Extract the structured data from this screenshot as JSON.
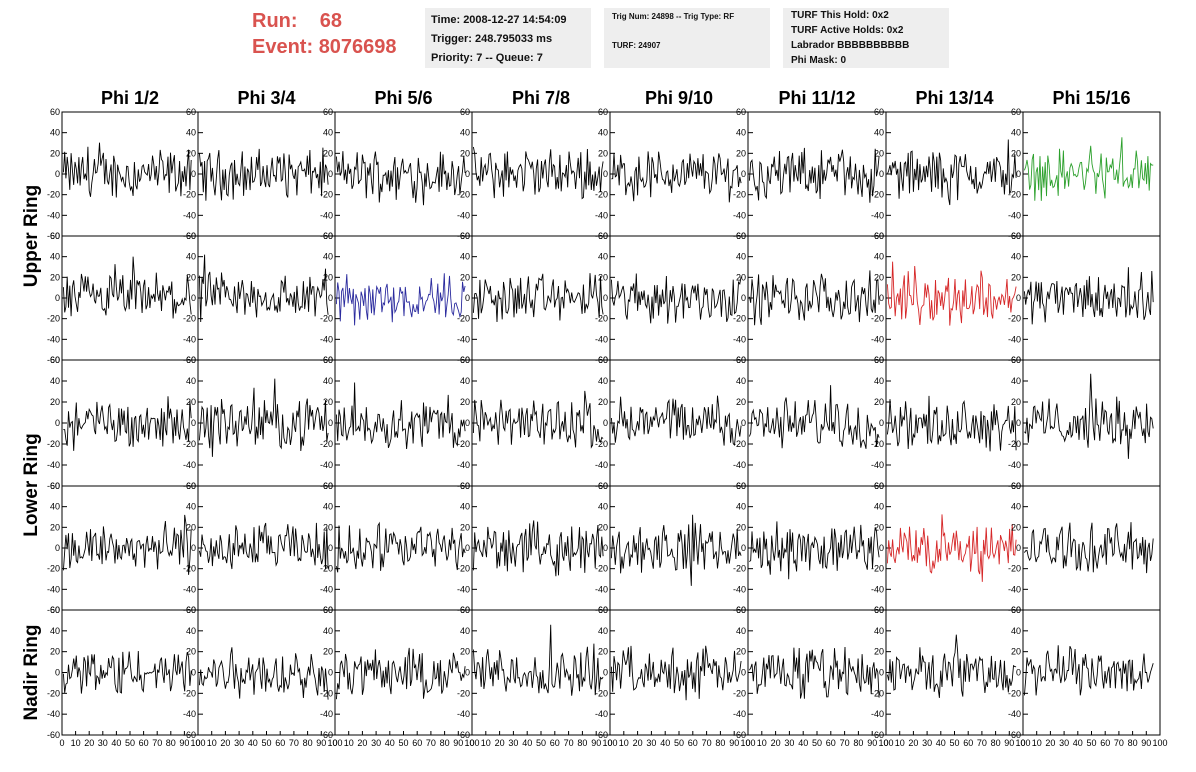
{
  "header": {
    "run_label": "Run:",
    "run_value": "68",
    "event_label": "Event:",
    "event_value": "8076698"
  },
  "info_box_1": {
    "time": "Time: 2008-12-27 14:54:09",
    "trigger": "Trigger: 248.795033 ms",
    "priority": "Priority: 7 -- Queue: 7"
  },
  "info_box_2": {
    "trig": "Trig Num: 24898 -- Trig Type: RF",
    "turf": "TURF: 24907"
  },
  "info_box_3": {
    "this_hold": "TURF This Hold: 0x2",
    "active_holds": "TURF Active Holds: 0x2",
    "labrador": "Labrador BBBBBBBBBB",
    "phi_mask": "Phi Mask: 0"
  },
  "chart_data": {
    "type": "line",
    "columns": [
      "Phi 1/2",
      "Phi 3/4",
      "Phi 5/6",
      "Phi 7/8",
      "Phi 9/10",
      "Phi 11/12",
      "Phi 13/14",
      "Phi 15/16"
    ],
    "ring_labels": [
      "Upper Ring",
      "Lower Ring",
      "Nadir Ring"
    ],
    "rows": 5,
    "ylim": [
      -60,
      60
    ],
    "yticks": [
      -60,
      -40,
      -20,
      0,
      20,
      40,
      60
    ],
    "xlim": [
      0,
      100
    ],
    "xticks": [
      0,
      10,
      20,
      30,
      40,
      50,
      60,
      70,
      80,
      90,
      100
    ],
    "waveform_points": 100,
    "typical_amplitude": 20,
    "colors": {
      "default": "#000000",
      "highlight_green": "#2ca02c",
      "highlight_blue": "#2b2b9e",
      "highlight_red": "#d62728"
    },
    "highlights": [
      {
        "row": 0,
        "col": 7,
        "color": "#2ca02c"
      },
      {
        "row": 1,
        "col": 2,
        "color": "#2b2b9e"
      },
      {
        "row": 1,
        "col": 6,
        "color": "#d62728"
      },
      {
        "row": 3,
        "col": 6,
        "color": "#d62728"
      }
    ]
  }
}
